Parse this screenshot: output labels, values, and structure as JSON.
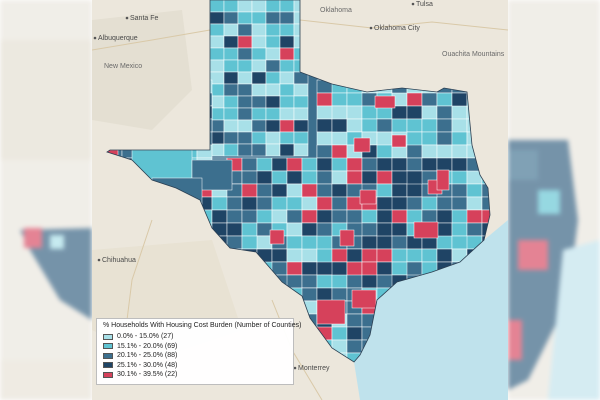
{
  "map": {
    "cities": [
      {
        "id": "santa-fe",
        "name": "Santa Fe"
      },
      {
        "id": "albuquerque",
        "name": "Albuquerque"
      },
      {
        "id": "oklahoma-city",
        "name": "Oklahoma City"
      },
      {
        "id": "tulsa",
        "name": "Tulsa"
      },
      {
        "id": "chihuahua",
        "name": "Chihuahua"
      },
      {
        "id": "monterrey",
        "name": "Monterrey"
      }
    ],
    "regions": [
      {
        "id": "oklahoma",
        "name": "Oklahoma"
      },
      {
        "id": "new-mexico",
        "name": "New Mexico"
      },
      {
        "id": "ouachita-mountains",
        "name": "Ouachita Mountains"
      }
    ]
  },
  "legend": {
    "title": "% Households With Housing Cost Burden (Number of Counties)",
    "items": [
      {
        "label": "0.0% - 15.0% (27)",
        "color": "#a8e0e8"
      },
      {
        "label": "15.1% - 20.0% (69)",
        "color": "#5fc3d2"
      },
      {
        "label": "20.1% - 25.0% (88)",
        "color": "#3c6f8e"
      },
      {
        "label": "25.1% - 30.0% (48)",
        "color": "#1f4465"
      },
      {
        "label": "30.1% - 39.5% (22)",
        "color": "#d6415b"
      }
    ]
  },
  "colors": {
    "land": "#ece7dc",
    "water": "#bfe2ec",
    "county_border": "#ffffff"
  }
}
